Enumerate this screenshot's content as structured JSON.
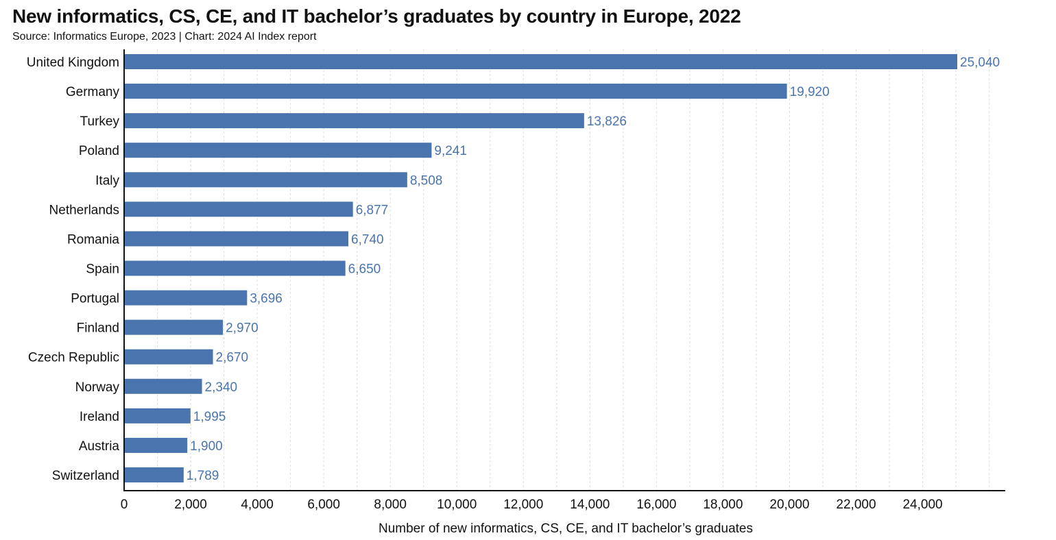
{
  "chart_data": {
    "type": "bar",
    "orientation": "horizontal",
    "title": "New informatics, CS, CE, and IT bachelor’s graduates by country in Europe, 2022",
    "subtitle": "Source: Informatics Europe, 2023 | Chart: 2024 AI Index report",
    "xlabel": "Number of new informatics, CS, CE, and IT bachelor’s graduates",
    "ylabel": "",
    "xlim": [
      0,
      27000
    ],
    "x_ticks": [
      0,
      2000,
      4000,
      6000,
      8000,
      10000,
      12000,
      14000,
      16000,
      18000,
      20000,
      22000,
      24000
    ],
    "x_tick_labels": [
      "0",
      "2,000",
      "4,000",
      "6,000",
      "8,000",
      "10,000",
      "12,000",
      "14,000",
      "16,000",
      "18,000",
      "20,000",
      "22,000",
      "24,000"
    ],
    "categories": [
      "United Kingdom",
      "Germany",
      "Turkey",
      "Poland",
      "Italy",
      "Netherlands",
      "Romania",
      "Spain",
      "Portugal",
      "Finland",
      "Czech Republic",
      "Norway",
      "Ireland",
      "Austria",
      "Switzerland"
    ],
    "values": [
      25040,
      19920,
      13826,
      9241,
      8508,
      6877,
      6740,
      6650,
      3696,
      2970,
      2670,
      2340,
      1995,
      1900,
      1789
    ],
    "value_labels": [
      "25,040",
      "19,920",
      "13,826",
      "9,241",
      "8,508",
      "6,877",
      "6,740",
      "6,650",
      "3,696",
      "2,970",
      "2,670",
      "2,340",
      "1,995",
      "1,900",
      "1,789"
    ],
    "grid": "vertical dashed",
    "legend": "none",
    "bar_color": "#4a74ad",
    "value_label_color": "#4a74ad",
    "grid_color": "#dddddd"
  }
}
